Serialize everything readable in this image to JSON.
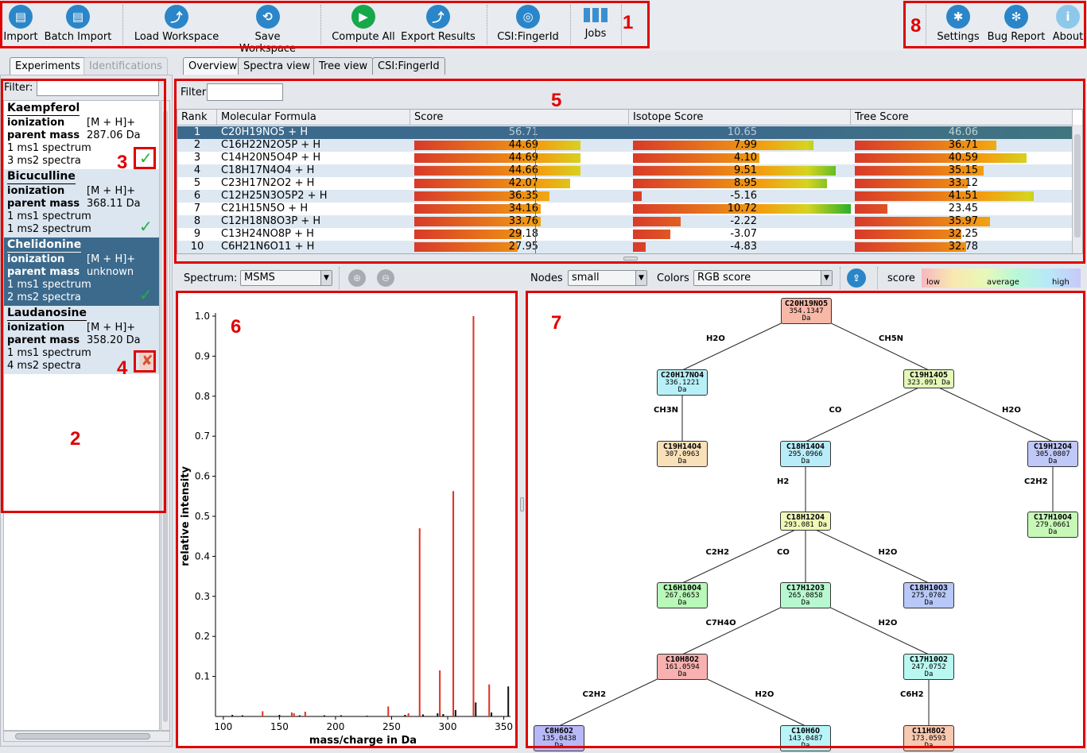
{
  "toolbar": {
    "left": [
      {
        "label": "Import",
        "icon": "import-icon"
      },
      {
        "label": "Batch Import",
        "icon": "batch-import-icon"
      },
      {
        "label": "Load Workspace",
        "icon": "load-workspace-icon"
      },
      {
        "label": "Save Workspace",
        "icon": "save-workspace-icon"
      },
      {
        "label": "Compute All",
        "icon": "play-icon"
      },
      {
        "label": "Export Results",
        "icon": "export-icon"
      },
      {
        "label": "CSI:FingerId",
        "icon": "fingerprint-icon"
      },
      {
        "label": "Jobs",
        "icon": "jobs-icon"
      }
    ],
    "right": [
      {
        "label": "Settings",
        "icon": "gear-icon"
      },
      {
        "label": "Bug Report",
        "icon": "bug-icon"
      },
      {
        "label": "About",
        "icon": "info-icon"
      }
    ]
  },
  "annotations": [
    "1",
    "2",
    "3",
    "4",
    "5",
    "6",
    "7",
    "8"
  ],
  "left_tabs": [
    "Experiments",
    "Identifications"
  ],
  "right_tabs": [
    "Overview",
    "Spectra view",
    "Tree view",
    "CSI:FingerId"
  ],
  "filter_label": "Filter:",
  "experiments": [
    {
      "name": "Kaempferol",
      "ionization_label": "ionization",
      "ionization": "[M + H]+",
      "mass_label": "parent mass",
      "mass": "287.06 Da",
      "ms1": "1 ms1 spectrum",
      "ms2": "3 ms2 spectra",
      "status": "done"
    },
    {
      "name": "Bicuculline",
      "ionization_label": "ionization",
      "ionization": "[M + H]+",
      "mass_label": "parent mass",
      "mass": "368.11 Da",
      "ms1": "1 ms1 spectrum",
      "ms2": "1 ms2 spectrum",
      "status": "done"
    },
    {
      "name": "Chelidonine",
      "ionization_label": "ionization",
      "ionization": "[M + H]+",
      "mass_label": "parent mass",
      "mass": "unknown",
      "ms1": "1 ms1 spectrum",
      "ms2": "2 ms2 spectra",
      "status": "done"
    },
    {
      "name": "Laudanosine",
      "ionization_label": "ionization",
      "ionization": "[M + H]+",
      "mass_label": "parent mass",
      "mass": "358.20 Da",
      "ms1": "1 ms1 spectrum",
      "ms2": "4 ms2 spectra",
      "status": "failed"
    }
  ],
  "results": {
    "filter_label": "Filter",
    "columns": [
      "Rank",
      "Molecular Formula",
      "Score",
      "Isotope Score",
      "Tree Score"
    ],
    "rows": [
      {
        "rank": "1",
        "formula": "C20H19NO5 + H",
        "score": "56.71",
        "iso": "10.65",
        "tree": "46.06",
        "s": 1.0,
        "i": 1.0,
        "t": 1.0
      },
      {
        "rank": "2",
        "formula": "C16H22N2O5P + H",
        "score": "44.69",
        "iso": "7.99",
        "tree": "36.71",
        "s": 0.79,
        "i": 0.83,
        "t": 0.65
      },
      {
        "rank": "3",
        "formula": "C14H20N5O4P + H",
        "score": "44.69",
        "iso": "4.10",
        "tree": "40.59",
        "s": 0.79,
        "i": 0.58,
        "t": 0.79
      },
      {
        "rank": "4",
        "formula": "C18H17N4O4 + H",
        "score": "44.66",
        "iso": "9.51",
        "tree": "35.15",
        "s": 0.79,
        "i": 0.93,
        "t": 0.59
      },
      {
        "rank": "5",
        "formula": "C23H17N2O2 + H",
        "score": "42.07",
        "iso": "8.95",
        "tree": "33.12",
        "s": 0.74,
        "i": 0.89,
        "t": 0.52
      },
      {
        "rank": "6",
        "formula": "C12H25N3O5P2 + H",
        "score": "36.35",
        "iso": "-5.16",
        "tree": "41.51",
        "s": 0.64,
        "i": 0.04,
        "t": 0.82
      },
      {
        "rank": "7",
        "formula": "C21H15N5O + H",
        "score": "34.16",
        "iso": "10.72",
        "tree": "23.45",
        "s": 0.6,
        "i": 1.0,
        "t": 0.15
      },
      {
        "rank": "8",
        "formula": "C12H18N8O3P + H",
        "score": "33.76",
        "iso": "-2.22",
        "tree": "35.97",
        "s": 0.6,
        "i": 0.22,
        "t": 0.62
      },
      {
        "rank": "9",
        "formula": "C13H24NO8P + H",
        "score": "29.18",
        "iso": "-3.07",
        "tree": "32.25",
        "s": 0.51,
        "i": 0.17,
        "t": 0.49
      },
      {
        "rank": "10",
        "formula": "C6H21N6O11 + H",
        "score": "27.95",
        "iso": "-4.83",
        "tree": "32.78",
        "s": 0.49,
        "i": 0.06,
        "t": 0.51
      }
    ]
  },
  "spectrum_toolbar": {
    "label": "Spectrum:",
    "value": "MSMS"
  },
  "tree_toolbar": {
    "nodes_label": "Nodes",
    "nodes_value": "small",
    "colors_label": "Colors",
    "colors_value": "RGB score",
    "score_label": "score",
    "legend_low": "low",
    "legend_avg": "average",
    "legend_high": "high"
  },
  "chart_data": {
    "type": "bar",
    "xlabel": "mass/charge in Da",
    "ylabel": "relative intensity",
    "xlim": [
      93,
      356
    ],
    "ylim": [
      0,
      1.0
    ],
    "xticks": [
      100,
      150,
      200,
      250,
      300,
      350
    ],
    "yticks": [
      "0.1",
      "0.2",
      "0.3",
      "0.4",
      "0.5",
      "0.6",
      "0.7",
      "0.8",
      "0.9",
      "1.0"
    ],
    "series": [
      {
        "color": "#e03020",
        "peaks": [
          [
            135,
            0.013
          ],
          [
            161,
            0.01
          ],
          [
            163,
            0.008
          ],
          [
            173,
            0.012
          ],
          [
            247,
            0.025
          ],
          [
            265,
            0.008
          ],
          [
            275,
            0.47
          ],
          [
            293,
            0.115
          ],
          [
            305,
            0.563
          ],
          [
            323,
            1.0
          ],
          [
            337,
            0.08
          ]
        ]
      },
      {
        "color": "#111111",
        "peaks": [
          [
            108,
            0.004
          ],
          [
            117,
            0.003
          ],
          [
            150,
            0.004
          ],
          [
            168,
            0.003
          ],
          [
            190,
            0.003
          ],
          [
            205,
            0.003
          ],
          [
            228,
            0.002
          ],
          [
            262,
            0.004
          ],
          [
            278,
            0.005
          ],
          [
            291,
            0.008
          ],
          [
            296,
            0.006
          ],
          [
            307,
            0.016
          ],
          [
            325,
            0.035
          ],
          [
            339,
            0.01
          ],
          [
            354,
            0.075
          ]
        ]
      }
    ]
  },
  "tree": {
    "nodes": [
      {
        "id": "n0",
        "f": "C20H19NO5",
        "m": "354.1347 Da",
        "c": "#f8b8a8"
      },
      {
        "id": "n1",
        "f": "C20H17NO4",
        "m": "336.1221 Da",
        "c": "#b8f0f8"
      },
      {
        "id": "n2",
        "f": "C19H14O5",
        "m": "323.091 Da",
        "c": "#e4f8b8"
      },
      {
        "id": "n3",
        "f": "C19H14O4",
        "m": "307.0963 Da",
        "c": "#f8e0b8"
      },
      {
        "id": "n4",
        "f": "C18H14O4",
        "m": "295.0966 Da",
        "c": "#b8ecf8"
      },
      {
        "id": "n5",
        "f": "C19H12O4",
        "m": "305.0807 Da",
        "c": "#c0c8f8"
      },
      {
        "id": "n6",
        "f": "C18H12O4",
        "m": "293.081 Da",
        "c": "#f0f8b8"
      },
      {
        "id": "n7",
        "f": "C17H10O4",
        "m": "279.0661 Da",
        "c": "#c8f8b8"
      },
      {
        "id": "n8",
        "f": "C16H10O4",
        "m": "267.0653 Da",
        "c": "#b8f8b8"
      },
      {
        "id": "n9",
        "f": "C17H12O3",
        "m": "265.0858 Da",
        "c": "#b8f8d0"
      },
      {
        "id": "n10",
        "f": "C18H10O3",
        "m": "275.0702 Da",
        "c": "#b8c8f8"
      },
      {
        "id": "n11",
        "f": "C10H8O2",
        "m": "161.0594 Da",
        "c": "#f8b0b0"
      },
      {
        "id": "n12",
        "f": "C17H10O2",
        "m": "247.0752 Da",
        "c": "#b8f8f0"
      },
      {
        "id": "n13",
        "f": "C8H6O2",
        "m": "135.0438 Da",
        "c": "#b8b8f8"
      },
      {
        "id": "n14",
        "f": "C10H6O",
        "m": "143.0487 Da",
        "c": "#b8f4f8"
      },
      {
        "id": "n15",
        "f": "C11H8O2",
        "m": "173.0593 Da",
        "c": "#f8c8b0"
      }
    ],
    "edges": [
      {
        "from": "n0",
        "to": "n1",
        "label": "H2O"
      },
      {
        "from": "n0",
        "to": "n2",
        "label": "CH5N"
      },
      {
        "from": "n1",
        "to": "n3",
        "label": "CH3N"
      },
      {
        "from": "n2",
        "to": "n4",
        "label": "CO"
      },
      {
        "from": "n2",
        "to": "n5",
        "label": "H2O"
      },
      {
        "from": "n4",
        "to": "n6",
        "label": "H2"
      },
      {
        "from": "n5",
        "to": "n7",
        "label": "C2H2"
      },
      {
        "from": "n6",
        "to": "n8",
        "label": "C2H2"
      },
      {
        "from": "n6",
        "to": "n9",
        "label": "CO"
      },
      {
        "from": "n6",
        "to": "n10",
        "label": "H2O"
      },
      {
        "from": "n9",
        "to": "n11",
        "label": "C7H4O"
      },
      {
        "from": "n9",
        "to": "n12",
        "label": "H2O"
      },
      {
        "from": "n11",
        "to": "n13",
        "label": "C2H2"
      },
      {
        "from": "n11",
        "to": "n14",
        "label": "H2O"
      },
      {
        "from": "n12",
        "to": "n15",
        "label": "C6H2"
      }
    ]
  }
}
